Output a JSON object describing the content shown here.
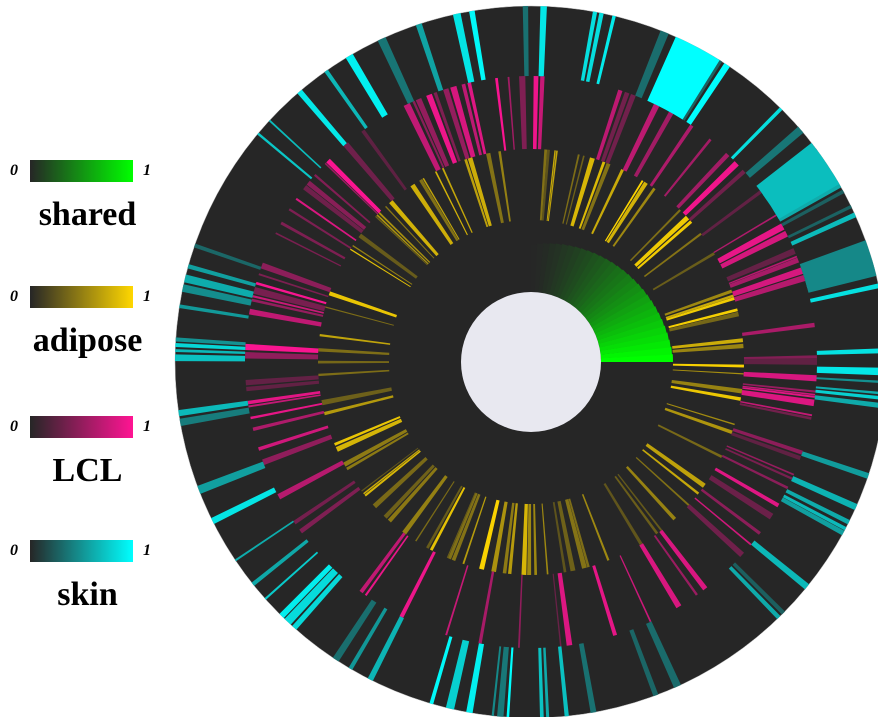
{
  "chart_data": {
    "type": "sunburst",
    "title": "",
    "rings": [
      {
        "name": "shared",
        "ring": 1,
        "colors": {
          "min": "#262626",
          "max": "#00ff00"
        }
      },
      {
        "name": "adipose",
        "ring": 2,
        "colors": {
          "min": "#262626",
          "max": "#ffd700"
        }
      },
      {
        "name": "LCL",
        "ring": 3,
        "colors": {
          "min": "#262626",
          "max": "#ff1493"
        }
      },
      {
        "name": "skin",
        "ring": 4,
        "colors": {
          "min": "#262626",
          "max": "#00ffff"
        }
      }
    ],
    "color_scale_range": [
      0,
      1
    ],
    "legend": {
      "placement": "left",
      "entries": [
        {
          "name": "shared",
          "min_label": "0",
          "max_label": "1",
          "color_min": "#262626",
          "color_max": "#00ff00"
        },
        {
          "name": "adipose",
          "min_label": "0",
          "max_label": "1",
          "color_min": "#262626",
          "color_max": "#ffd700"
        },
        {
          "name": "LCL",
          "min_label": "0",
          "max_label": "1",
          "color_min": "#262626",
          "color_max": "#ff1493"
        },
        {
          "name": "skin",
          "min_label": "0",
          "max_label": "1",
          "color_min": "#262626",
          "color_max": "#00ffff"
        }
      ]
    },
    "center_color": "#e8e8f0",
    "background_ring_color": "#262626"
  }
}
